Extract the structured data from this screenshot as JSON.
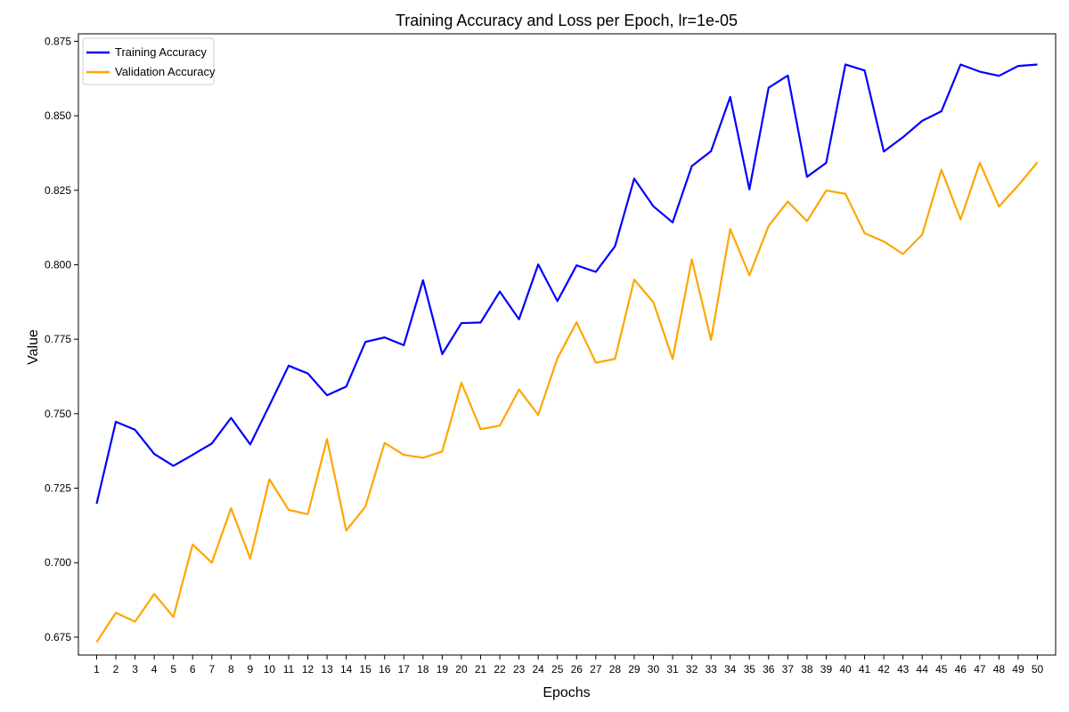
{
  "chart_data": {
    "type": "line",
    "title": "Training Accuracy and Loss per Epoch, lr=1e-05",
    "xlabel": "Epochs",
    "ylabel": "Value",
    "x": [
      1,
      2,
      3,
      4,
      5,
      6,
      7,
      8,
      9,
      10,
      11,
      12,
      13,
      14,
      15,
      16,
      17,
      18,
      19,
      20,
      21,
      22,
      23,
      24,
      25,
      26,
      27,
      28,
      29,
      30,
      31,
      32,
      33,
      34,
      35,
      36,
      37,
      38,
      39,
      40,
      41,
      42,
      43,
      44,
      45,
      46,
      47,
      48,
      49,
      50
    ],
    "xticks": [
      "1",
      "2",
      "3",
      "4",
      "5",
      "6",
      "7",
      "8",
      "9",
      "10",
      "11",
      "12",
      "13",
      "14",
      "15",
      "16",
      "17",
      "18",
      "19",
      "20",
      "21",
      "22",
      "23",
      "24",
      "25",
      "26",
      "27",
      "28",
      "29",
      "30",
      "31",
      "32",
      "33",
      "34",
      "35",
      "36",
      "37",
      "38",
      "39",
      "40",
      "41",
      "42",
      "43",
      "44",
      "45",
      "46",
      "47",
      "48",
      "49",
      "50"
    ],
    "yticks": [
      "0.675",
      "0.700",
      "0.725",
      "0.750",
      "0.775",
      "0.800",
      "0.825",
      "0.850",
      "0.875"
    ],
    "ytick_values": [
      0.675,
      0.7,
      0.725,
      0.75,
      0.775,
      0.8,
      0.825,
      0.85,
      0.875
    ],
    "ylim": [
      0.669,
      0.8775
    ],
    "xlim": [
      0.05,
      50.95
    ],
    "grid": false,
    "legend_position": "top-left",
    "series": [
      {
        "name": "Training Accuracy",
        "color": "#0000ff",
        "values": [
          0.7198,
          0.7473,
          0.7446,
          0.7365,
          0.7325,
          0.7362,
          0.74,
          0.7486,
          0.7397,
          0.7528,
          0.7661,
          0.7635,
          0.7562,
          0.7591,
          0.7741,
          0.7756,
          0.773,
          0.7948,
          0.77,
          0.7804,
          0.7806,
          0.791,
          0.7817,
          0.8001,
          0.7878,
          0.7998,
          0.7976,
          0.8062,
          0.8289,
          0.8196,
          0.8142,
          0.8331,
          0.8381,
          0.8563,
          0.8253,
          0.8594,
          0.8635,
          0.8295,
          0.8342,
          0.8672,
          0.8652,
          0.838,
          0.8428,
          0.8483,
          0.8515,
          0.8672,
          0.8648,
          0.8634,
          0.8667,
          0.8672
        ]
      },
      {
        "name": "Validation Accuracy",
        "color": "#ffa500",
        "values": [
          0.6733,
          0.6832,
          0.6802,
          0.6895,
          0.6818,
          0.7061,
          0.7,
          0.7183,
          0.7014,
          0.728,
          0.7177,
          0.7163,
          0.7415,
          0.7108,
          0.7188,
          0.7402,
          0.7362,
          0.7352,
          0.7373,
          0.7604,
          0.7448,
          0.746,
          0.7581,
          0.7496,
          0.7686,
          0.7807,
          0.7671,
          0.7684,
          0.795,
          0.7874,
          0.7684,
          0.8018,
          0.7748,
          0.812,
          0.7965,
          0.813,
          0.8212,
          0.8146,
          0.8249,
          0.8238,
          0.8106,
          0.8078,
          0.8036,
          0.8101,
          0.8319,
          0.8152,
          0.8342,
          0.8195,
          0.8266,
          0.8344
        ]
      }
    ]
  }
}
